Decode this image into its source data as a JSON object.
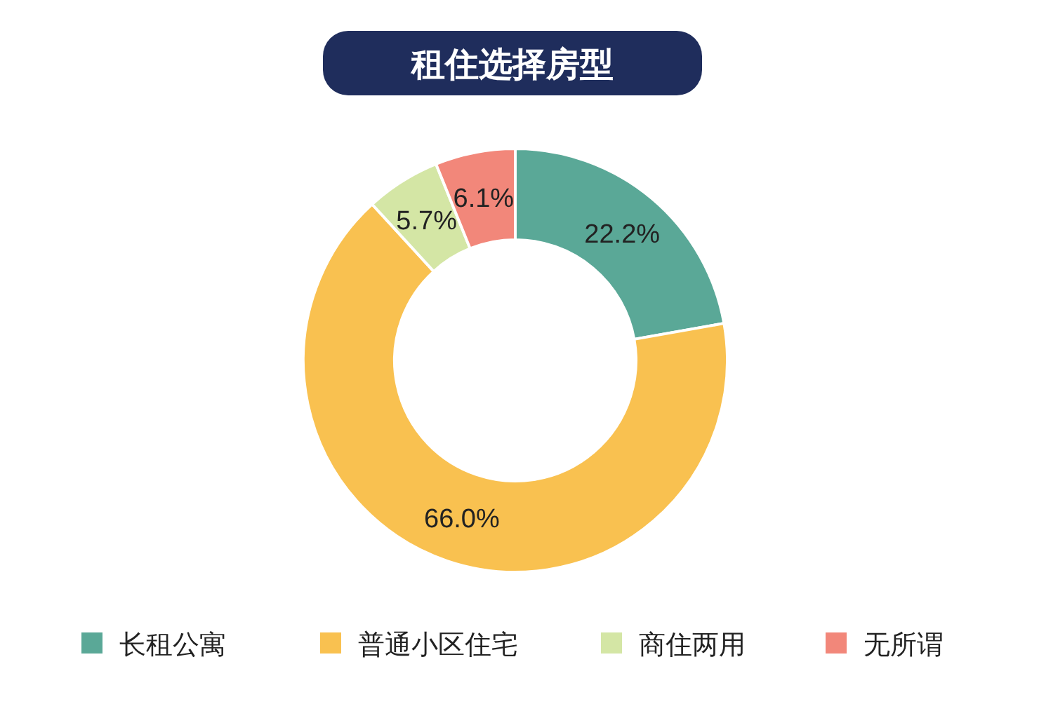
{
  "chart_data": {
    "type": "donut",
    "title": "租住选择房型",
    "categories": [
      "长租公寓",
      "普通小区住宅",
      "商住两用",
      "无所谓"
    ],
    "values": [
      22.2,
      66.0,
      5.7,
      6.1
    ],
    "colors": [
      "#5aa897",
      "#f9c150",
      "#d4e6a5",
      "#f2877a"
    ],
    "value_labels": [
      "22.2%",
      "66.0%",
      "5.7%",
      "6.1%"
    ],
    "legend": "bottom"
  }
}
